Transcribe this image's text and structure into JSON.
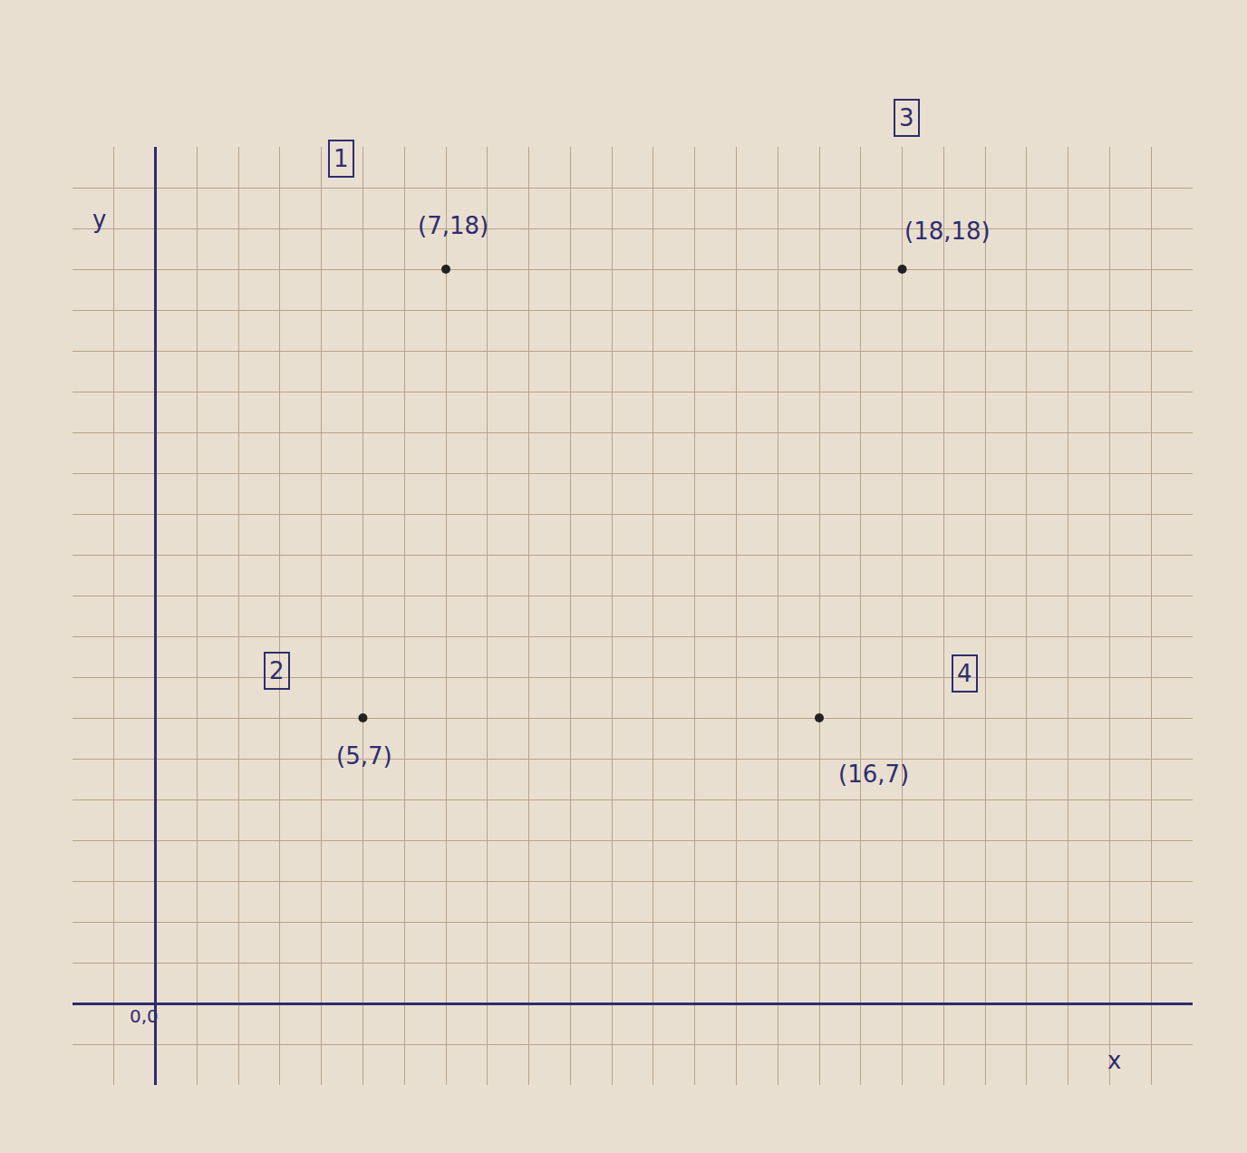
{
  "chart_data": {
    "type": "scatter",
    "x": [
      7,
      5,
      18,
      16
    ],
    "y": [
      18,
      7,
      18,
      7
    ],
    "point_labels": [
      "(7,18)",
      "(5,7)",
      "(18,18)",
      "(16,7)"
    ],
    "point_numbers": [
      "1",
      "2",
      "3",
      "4"
    ],
    "x_label": "x",
    "y_label": "y",
    "origin_label": "0,0",
    "xlim": [
      -2,
      25
    ],
    "ylim": [
      -2,
      21
    ],
    "xticks": [
      -2,
      -1,
      0,
      1,
      2,
      3,
      4,
      5,
      6,
      7,
      8,
      9,
      10,
      11,
      12,
      13,
      14,
      15,
      16,
      17,
      18,
      19,
      20,
      21,
      22,
      23,
      24,
      25
    ],
    "yticks": [
      -2,
      -1,
      0,
      1,
      2,
      3,
      4,
      5,
      6,
      7,
      8,
      9,
      10,
      11,
      12,
      13,
      14,
      15,
      16,
      17,
      18,
      19,
      20,
      21
    ],
    "grid": true,
    "tick_labels": false,
    "color": "#222222",
    "marker": "circle"
  }
}
